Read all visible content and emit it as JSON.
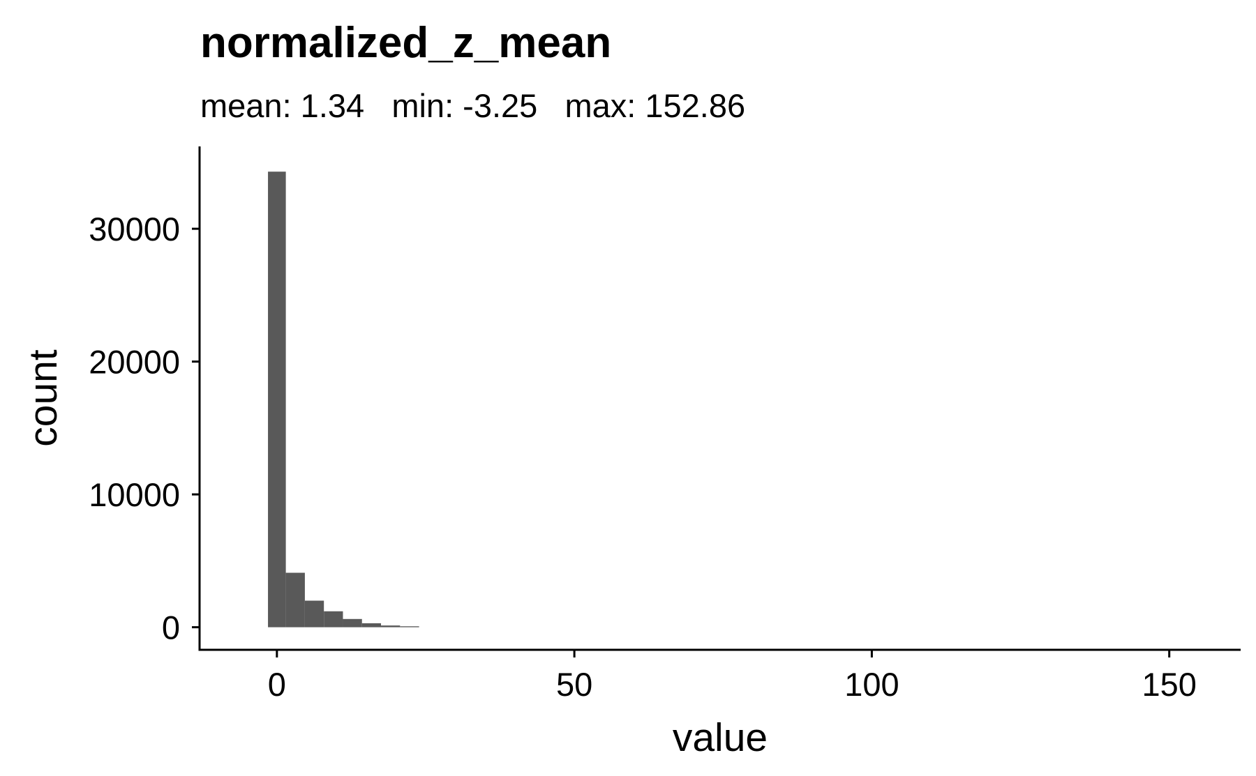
{
  "chart_data": {
    "type": "bar",
    "title": "normalized_z_mean",
    "subtitle": "mean: 1.34   min: -3.25   max: 152.86",
    "xlabel": "value",
    "ylabel": "count",
    "xlim": [
      -13,
      162
    ],
    "ylim": [
      -1700,
      36200
    ],
    "x_ticks": [
      0,
      50,
      100,
      150
    ],
    "y_ticks": [
      0,
      10000,
      20000,
      30000
    ],
    "bar_color": "#595959",
    "grid": false,
    "legend": "none",
    "bins": [
      {
        "x0": -1.5,
        "x1": 1.5,
        "count": 34300
      },
      {
        "x0": 1.5,
        "x1": 4.7,
        "count": 4100
      },
      {
        "x0": 4.7,
        "x1": 7.9,
        "count": 2000
      },
      {
        "x0": 7.9,
        "x1": 11.1,
        "count": 1200
      },
      {
        "x0": 11.1,
        "x1": 14.3,
        "count": 620
      },
      {
        "x0": 14.3,
        "x1": 17.5,
        "count": 300
      },
      {
        "x0": 17.5,
        "x1": 20.7,
        "count": 130
      },
      {
        "x0": 20.7,
        "x1": 23.9,
        "count": 70
      }
    ]
  }
}
